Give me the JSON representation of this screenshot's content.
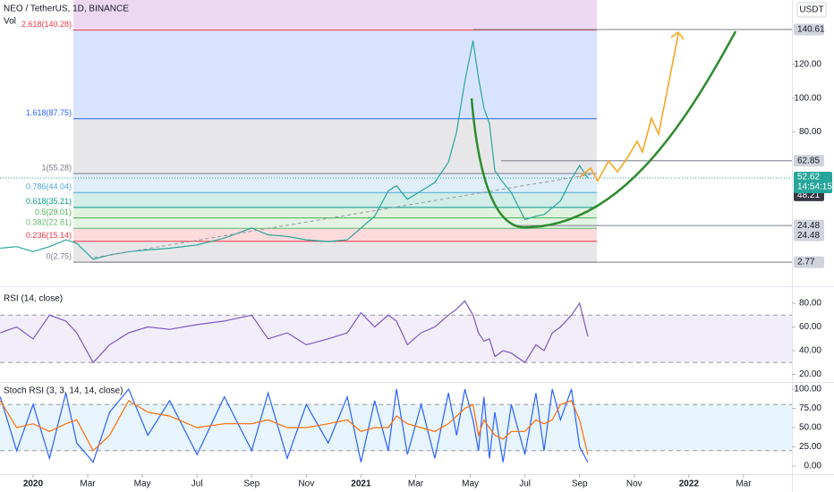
{
  "chart_data": [
    {
      "type": "line",
      "title": "NEO / TetherUS, 1D, BINANCE",
      "subtitle": "Vol",
      "unit": "USDT",
      "x": [
        -1.2,
        -0.6,
        0,
        0.6,
        1.2,
        1.6,
        2.2,
        2.8,
        3.5,
        4.2,
        5,
        6,
        7,
        8,
        8.6,
        9.3,
        10,
        10.8,
        11.5,
        12,
        12.5,
        13,
        13.3,
        13.7,
        14.2,
        14.7,
        15.2,
        15.5,
        15.8,
        16.1,
        16.3,
        16.5,
        16.7,
        16.9,
        17.2,
        17.5,
        18,
        18.4,
        18.7,
        19,
        19.3,
        19.7,
        20,
        20.3
      ],
      "series": [
        {
          "color": "#26a69a",
          "values": [
            11,
            12,
            9,
            12,
            16,
            14,
            4.5,
            7,
            9,
            10,
            11,
            13,
            17,
            23,
            19,
            18,
            16,
            15,
            16,
            23,
            30,
            45,
            48,
            40,
            45,
            50,
            62,
            80,
            110,
            134,
            112,
            94,
            85,
            57,
            50,
            44,
            28,
            30,
            31,
            35,
            39,
            52,
            60,
            52.62
          ]
        }
      ],
      "xlim": [
        -1.21,
        27.77
      ],
      "xticks": [
        {
          "value": 0,
          "label": "2020"
        },
        {
          "value": 2,
          "label": "Mar"
        },
        {
          "value": 4,
          "label": "May"
        },
        {
          "value": 6,
          "label": "Jul"
        },
        {
          "value": 8,
          "label": "Sep"
        },
        {
          "value": 10,
          "label": "Nov"
        },
        {
          "value": 12,
          "label": "2021"
        },
        {
          "value": 14,
          "label": "Mar"
        },
        {
          "value": 16,
          "label": "May"
        },
        {
          "value": 18,
          "label": "Jul"
        },
        {
          "value": 20,
          "label": "Sep"
        },
        {
          "value": 22,
          "label": "Nov"
        },
        {
          "value": 24,
          "label": "2022"
        },
        {
          "value": 26,
          "label": "Mar"
        }
      ],
      "ylim": [
        -11.5,
        158.1
      ],
      "yticks": [
        {
          "value": 120,
          "label": "120.00"
        },
        {
          "value": 100,
          "label": "100.00"
        },
        {
          "value": 80,
          "label": "80.00"
        }
      ],
      "fib_levels": [
        {
          "label": "2.618(140.28)",
          "value": 140.28,
          "color": "#f23645"
        },
        {
          "label": "1.618(87.75)",
          "value": 87.75,
          "color": "#2962ff"
        },
        {
          "label": "1(55.28)",
          "value": 55.28,
          "color": "#787b86"
        },
        {
          "label": "0.786(44.04)",
          "value": 44.04,
          "color": "#4ba3d6"
        },
        {
          "label": "0.618(35.21)",
          "value": 35.21,
          "color": "#089981"
        },
        {
          "label": "0.5(29.01)",
          "value": 29.01,
          "color": "#4caf50"
        },
        {
          "label": "0.382(22.81)",
          "value": 22.81,
          "color": "#66bb6a"
        },
        {
          "label": "0.236(15.14)",
          "value": 15.14,
          "color": "#f23645"
        },
        {
          "label": "0(2.75)",
          "value": 2.75,
          "color": "#787b86"
        }
      ],
      "price_labels": [
        140.61,
        62.85,
        48.21,
        24.48,
        24.48,
        2.77
      ],
      "last_price": 52.62,
      "countdown": "14:54:15"
    },
    {
      "type": "line",
      "title": "RSI (14, close)",
      "x": [
        -1.2,
        -0.6,
        0,
        0.6,
        1.2,
        1.6,
        2.2,
        2.8,
        3.5,
        4.2,
        5,
        6,
        7,
        8,
        8.6,
        9.3,
        10,
        10.8,
        11.5,
        12,
        12.5,
        13,
        13.3,
        13.7,
        14.2,
        14.7,
        15.2,
        15.5,
        15.8,
        16.1,
        16.3,
        16.5,
        16.7,
        16.9,
        17.2,
        17.5,
        18,
        18.4,
        18.7,
        19,
        19.3,
        19.7,
        20,
        20.3
      ],
      "series": [
        {
          "color": "#7e57c2",
          "values": [
            55,
            60,
            50,
            70,
            65,
            55,
            30,
            45,
            55,
            60,
            58,
            62,
            65,
            70,
            50,
            55,
            45,
            50,
            55,
            72,
            60,
            70,
            65,
            45,
            55,
            60,
            70,
            75,
            82,
            70,
            55,
            48,
            50,
            35,
            40,
            38,
            30,
            45,
            40,
            55,
            60,
            70,
            80,
            52
          ]
        }
      ],
      "ylim": [
        13.6,
        93.6
      ],
      "yticks": [
        {
          "value": 80,
          "label": "80.00"
        },
        {
          "value": 60,
          "label": "60.00"
        },
        {
          "value": 40,
          "label": "40.00"
        },
        {
          "value": 20,
          "label": "20.00"
        }
      ],
      "bands": [
        30,
        70
      ],
      "band_color": "#7e57c2"
    },
    {
      "type": "line",
      "title": "Stoch RSI (3, 3, 14, 14, close)",
      "x": [
        -1.2,
        -0.6,
        0,
        0.6,
        1.2,
        1.6,
        2.2,
        2.8,
        3.5,
        4.2,
        5,
        6,
        7,
        8,
        8.6,
        9.3,
        10,
        10.8,
        11.5,
        12,
        12.5,
        13,
        13.3,
        13.7,
        14.2,
        14.7,
        15.2,
        15.5,
        15.8,
        16.1,
        16.3,
        16.5,
        16.7,
        16.9,
        17.2,
        17.5,
        18,
        18.4,
        18.7,
        19,
        19.3,
        19.7,
        20,
        20.3
      ],
      "series": [
        {
          "color": "#2962ff",
          "values": [
            90,
            20,
            80,
            10,
            95,
            30,
            5,
            70,
            100,
            40,
            85,
            15,
            90,
            20,
            95,
            10,
            80,
            30,
            90,
            5,
            85,
            20,
            100,
            15,
            80,
            10,
            95,
            40,
            100,
            60,
            20,
            90,
            10,
            70,
            5,
            80,
            15,
            95,
            20,
            100,
            60,
            100,
            25,
            5
          ]
        },
        {
          "color": "#ff6d00",
          "values": [
            85,
            50,
            55,
            45,
            55,
            60,
            20,
            40,
            85,
            70,
            65,
            50,
            55,
            55,
            60,
            50,
            50,
            55,
            60,
            45,
            50,
            50,
            65,
            55,
            50,
            45,
            55,
            65,
            75,
            80,
            40,
            60,
            50,
            40,
            35,
            45,
            45,
            60,
            55,
            60,
            80,
            85,
            60,
            15
          ]
        }
      ],
      "ylim": [
        -10.5,
        108.1
      ],
      "yticks": [
        {
          "value": 100,
          "label": "100.00"
        },
        {
          "value": 75,
          "label": "75.00"
        },
        {
          "value": 50,
          "label": "50.00"
        },
        {
          "value": 25,
          "label": "25.00"
        },
        {
          "value": 0,
          "label": "0.00"
        }
      ],
      "bands": [
        20,
        80
      ],
      "band_color": "#2196f3"
    }
  ]
}
